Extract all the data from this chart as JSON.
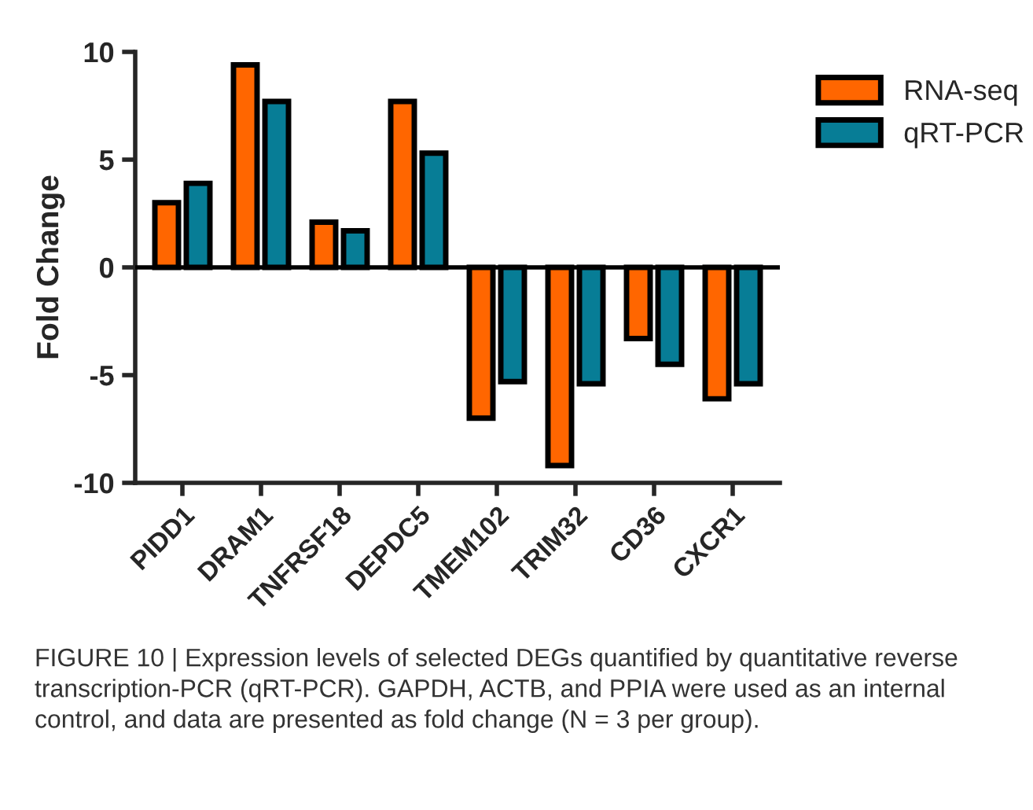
{
  "chart_data": {
    "type": "bar",
    "ylabel": "Fold Change",
    "categories": [
      "PIDD1",
      "DRAM1",
      "TNFRSF18",
      "DEPDC5",
      "TMEM102",
      "TRIM32",
      "CD36",
      "CXCR1"
    ],
    "series": [
      {
        "name": "RNA-seq",
        "color": "#ff6600",
        "values": [
          3.0,
          9.4,
          2.1,
          7.7,
          -7.0,
          -9.2,
          -3.3,
          -6.1
        ]
      },
      {
        "name": "qRT-PCR",
        "color": "#077d96",
        "values": [
          3.9,
          7.7,
          1.7,
          5.3,
          -5.3,
          -5.4,
          -4.5,
          -5.4
        ]
      }
    ],
    "ylim": [
      -10,
      10
    ],
    "yticks": [
      -10,
      -5,
      0,
      5,
      10
    ],
    "grid": false,
    "legend": "top right",
    "ref_lines": [
      {
        "axis": "y",
        "value": 0,
        "color": "#000000"
      }
    ],
    "annotations": [
      "FIGURE 10 | Expression levels of selected DEGs quantified by quantitative reverse transcription-PCR (qRT-PCR). GAPDH, ACTB, and PPIA were used as an internal control, and data are presented as fold change (N = 3 per group)."
    ]
  }
}
